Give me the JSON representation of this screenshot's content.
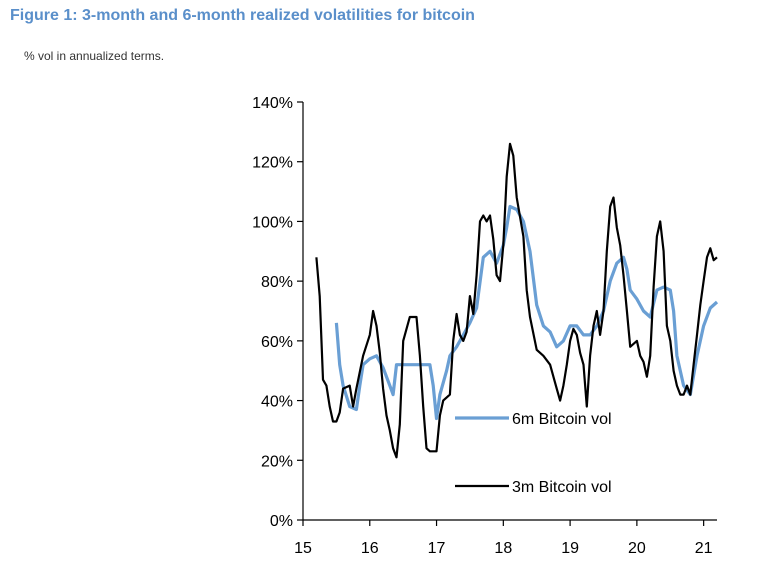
{
  "figure": {
    "title": "Figure 1: 3-month and 6-month realized volatilities for bitcoin",
    "subtitle": "% vol in annualized terms."
  },
  "colors": {
    "title": "#5a8fca",
    "series_6m": "#6a9fd4",
    "series_3m": "#000000"
  },
  "chart_data": {
    "type": "line",
    "title": "3-month and 6-month realized volatilities for bitcoin",
    "xlabel": "",
    "ylabel": "% vol in annualized terms.",
    "xlim": [
      15,
      21.2
    ],
    "ylim": [
      0,
      140
    ],
    "x_ticks": [
      15,
      16,
      17,
      18,
      19,
      20,
      21
    ],
    "x_tick_labels": [
      "15",
      "16",
      "17",
      "18",
      "19",
      "20",
      "21"
    ],
    "y_ticks": [
      0,
      20,
      40,
      60,
      80,
      100,
      120,
      140
    ],
    "y_tick_labels": [
      "0%",
      "20%",
      "40%",
      "60%",
      "80%",
      "100%",
      "120%",
      "140%"
    ],
    "legend": [
      "6m Bitcoin vol",
      "3m Bitcoin vol"
    ],
    "series": [
      {
        "name": "6m Bitcoin vol",
        "color": "#6a9fd4",
        "points": [
          [
            15.5,
            66
          ],
          [
            15.55,
            52
          ],
          [
            15.6,
            45
          ],
          [
            15.7,
            38
          ],
          [
            15.8,
            37
          ],
          [
            15.85,
            45
          ],
          [
            15.9,
            52
          ],
          [
            16.0,
            54
          ],
          [
            16.1,
            55
          ],
          [
            16.2,
            51
          ],
          [
            16.3,
            45
          ],
          [
            16.35,
            42
          ],
          [
            16.4,
            52
          ],
          [
            16.5,
            52
          ],
          [
            16.7,
            52
          ],
          [
            16.9,
            52
          ],
          [
            16.95,
            45
          ],
          [
            17.0,
            34
          ],
          [
            17.05,
            42
          ],
          [
            17.15,
            50
          ],
          [
            17.2,
            55
          ],
          [
            17.3,
            58
          ],
          [
            17.4,
            62
          ],
          [
            17.5,
            66
          ],
          [
            17.6,
            71
          ],
          [
            17.7,
            88
          ],
          [
            17.8,
            90
          ],
          [
            17.9,
            86
          ],
          [
            18.0,
            92
          ],
          [
            18.05,
            98
          ],
          [
            18.1,
            105
          ],
          [
            18.2,
            104
          ],
          [
            18.3,
            100
          ],
          [
            18.4,
            90
          ],
          [
            18.5,
            72
          ],
          [
            18.6,
            65
          ],
          [
            18.7,
            63
          ],
          [
            18.8,
            58
          ],
          [
            18.9,
            60
          ],
          [
            19.0,
            65
          ],
          [
            19.1,
            65
          ],
          [
            19.2,
            62
          ],
          [
            19.3,
            62
          ],
          [
            19.4,
            65
          ],
          [
            19.5,
            70
          ],
          [
            19.6,
            80
          ],
          [
            19.7,
            86
          ],
          [
            19.8,
            88
          ],
          [
            19.85,
            84
          ],
          [
            19.9,
            77
          ],
          [
            20.0,
            74
          ],
          [
            20.1,
            70
          ],
          [
            20.2,
            68
          ],
          [
            20.3,
            77
          ],
          [
            20.4,
            78
          ],
          [
            20.5,
            77
          ],
          [
            20.55,
            70
          ],
          [
            20.6,
            55
          ],
          [
            20.7,
            45
          ],
          [
            20.8,
            42
          ],
          [
            20.9,
            55
          ],
          [
            21.0,
            65
          ],
          [
            21.1,
            71
          ],
          [
            21.2,
            73
          ]
        ]
      },
      {
        "name": "3m Bitcoin vol",
        "color": "#000000",
        "points": [
          [
            15.2,
            88
          ],
          [
            15.25,
            75
          ],
          [
            15.3,
            47
          ],
          [
            15.35,
            45
          ],
          [
            15.4,
            38
          ],
          [
            15.45,
            33
          ],
          [
            15.5,
            33
          ],
          [
            15.55,
            36
          ],
          [
            15.6,
            44
          ],
          [
            15.7,
            45
          ],
          [
            15.75,
            38
          ],
          [
            15.8,
            44
          ],
          [
            15.9,
            55
          ],
          [
            16.0,
            62
          ],
          [
            16.05,
            70
          ],
          [
            16.1,
            65
          ],
          [
            16.15,
            56
          ],
          [
            16.2,
            44
          ],
          [
            16.25,
            35
          ],
          [
            16.3,
            30
          ],
          [
            16.35,
            24
          ],
          [
            16.4,
            21
          ],
          [
            16.45,
            32
          ],
          [
            16.5,
            60
          ],
          [
            16.6,
            68
          ],
          [
            16.7,
            68
          ],
          [
            16.75,
            55
          ],
          [
            16.8,
            38
          ],
          [
            16.85,
            24
          ],
          [
            16.9,
            23
          ],
          [
            17.0,
            23
          ],
          [
            17.05,
            35
          ],
          [
            17.1,
            40
          ],
          [
            17.2,
            42
          ],
          [
            17.25,
            60
          ],
          [
            17.3,
            69
          ],
          [
            17.35,
            62
          ],
          [
            17.4,
            60
          ],
          [
            17.45,
            63
          ],
          [
            17.5,
            75
          ],
          [
            17.55,
            69
          ],
          [
            17.6,
            82
          ],
          [
            17.65,
            100
          ],
          [
            17.7,
            102
          ],
          [
            17.75,
            100
          ],
          [
            17.8,
            102
          ],
          [
            17.85,
            94
          ],
          [
            17.9,
            82
          ],
          [
            17.95,
            80
          ],
          [
            18.0,
            92
          ],
          [
            18.05,
            115
          ],
          [
            18.1,
            126
          ],
          [
            18.15,
            122
          ],
          [
            18.2,
            108
          ],
          [
            18.3,
            95
          ],
          [
            18.35,
            77
          ],
          [
            18.4,
            68
          ],
          [
            18.5,
            57
          ],
          [
            18.6,
            55
          ],
          [
            18.7,
            52
          ],
          [
            18.8,
            44
          ],
          [
            18.85,
            40
          ],
          [
            18.9,
            45
          ],
          [
            18.95,
            52
          ],
          [
            19.0,
            60
          ],
          [
            19.05,
            64
          ],
          [
            19.1,
            62
          ],
          [
            19.15,
            56
          ],
          [
            19.2,
            52
          ],
          [
            19.25,
            38
          ],
          [
            19.3,
            55
          ],
          [
            19.35,
            65
          ],
          [
            19.4,
            70
          ],
          [
            19.45,
            62
          ],
          [
            19.5,
            70
          ],
          [
            19.55,
            90
          ],
          [
            19.6,
            105
          ],
          [
            19.65,
            108
          ],
          [
            19.7,
            98
          ],
          [
            19.75,
            92
          ],
          [
            19.8,
            82
          ],
          [
            19.85,
            70
          ],
          [
            19.9,
            58
          ],
          [
            20.0,
            60
          ],
          [
            20.05,
            55
          ],
          [
            20.1,
            53
          ],
          [
            20.15,
            48
          ],
          [
            20.2,
            55
          ],
          [
            20.25,
            78
          ],
          [
            20.3,
            95
          ],
          [
            20.35,
            100
          ],
          [
            20.4,
            90
          ],
          [
            20.45,
            65
          ],
          [
            20.5,
            60
          ],
          [
            20.55,
            50
          ],
          [
            20.6,
            45
          ],
          [
            20.65,
            42
          ],
          [
            20.7,
            42
          ],
          [
            20.75,
            45
          ],
          [
            20.8,
            42
          ],
          [
            20.85,
            52
          ],
          [
            20.9,
            62
          ],
          [
            20.95,
            72
          ],
          [
            21.0,
            80
          ],
          [
            21.05,
            88
          ],
          [
            21.1,
            91
          ],
          [
            21.15,
            87
          ],
          [
            21.2,
            88
          ]
        ]
      }
    ]
  }
}
